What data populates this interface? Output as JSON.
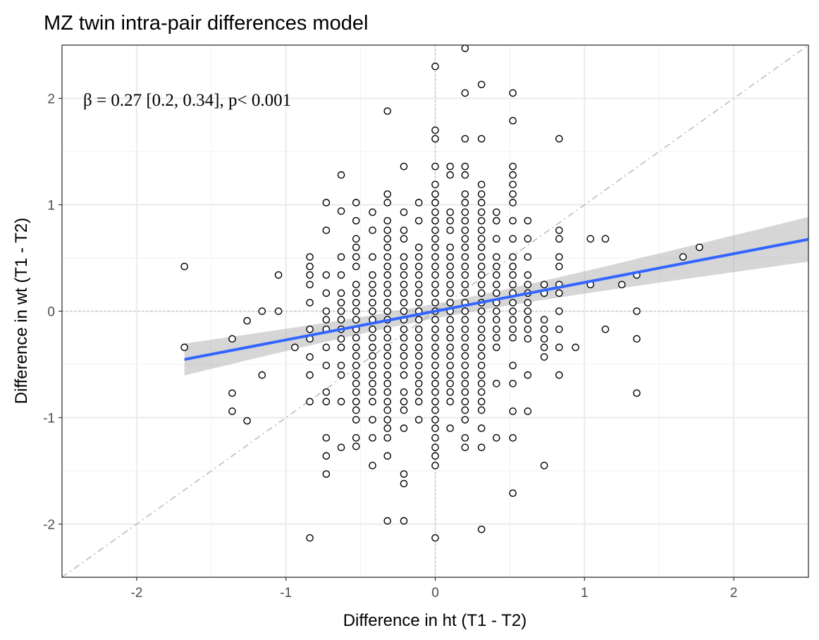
{
  "chart_data": {
    "type": "scatter",
    "title": "MZ twin intra-pair differences model",
    "xlabel": "Difference in  ht  (T1 - T2)",
    "ylabel": "Difference in  wt  (T1 - T2)",
    "xlim": [
      -2.5,
      2.5
    ],
    "ylim": [
      -2.5,
      2.5
    ],
    "xticks": [
      -2,
      -1,
      0,
      1,
      2
    ],
    "yticks": [
      -2,
      -1,
      0,
      1,
      2
    ],
    "grid": true,
    "annotation": "β = 0.27 [0.2, 0.34], p< 0.001",
    "reference_lines": {
      "identity": "y = x, dash-dot gray",
      "zero": "x = 0 and y = 0, dotted gray"
    },
    "fit": {
      "slope": 0.27,
      "ci": [
        0.2,
        0.34
      ],
      "intercept": 0.0,
      "x_range": [
        -1.68,
        2.5
      ],
      "color": "#3366FF",
      "band_color": "#999999"
    },
    "point_style": {
      "shape": "open circle",
      "stroke": "#000000",
      "fill": "#ffffff"
    },
    "columns": [
      {
        "x": -1.68,
        "y": [
          0.42,
          -0.34
        ]
      },
      {
        "x": -1.36,
        "y": [
          -0.26,
          -0.77,
          -0.94
        ]
      },
      {
        "x": -1.26,
        "y": [
          -0.09,
          -1.03
        ]
      },
      {
        "x": -1.16,
        "y": [
          0,
          -0.6
        ]
      },
      {
        "x": -1.05,
        "y": [
          0.34,
          0
        ]
      },
      {
        "x": -0.94,
        "y": [
          -0.34
        ]
      },
      {
        "x": -0.84,
        "y": [
          0.51,
          0.42,
          0.34,
          0.25,
          0.08,
          -0.17,
          -0.26,
          -0.43,
          -0.6,
          -0.85,
          -2.13
        ]
      },
      {
        "x": -0.73,
        "y": [
          1.02,
          0.76,
          0.34,
          0.17,
          0,
          -0.08,
          -0.17,
          -0.34,
          -0.51,
          -0.76,
          -0.85,
          -1.19,
          -1.36,
          -1.53
        ]
      },
      {
        "x": -0.63,
        "y": [
          1.28,
          0.94,
          0.51,
          0.34,
          0.17,
          0.08,
          0,
          -0.08,
          -0.17,
          -0.26,
          -0.34,
          -0.51,
          -0.6,
          -0.85,
          -1.28
        ]
      },
      {
        "x": -0.53,
        "y": [
          1.02,
          0.85,
          0.68,
          0.6,
          0.51,
          0.42,
          0.25,
          0.17,
          0.08,
          0,
          -0.08,
          -0.17,
          -0.25,
          -0.34,
          -0.42,
          -0.51,
          -0.6,
          -0.68,
          -0.76,
          -0.85,
          -0.93,
          -1.02,
          -1.19,
          -1.27
        ]
      },
      {
        "x": -0.42,
        "y": [
          0.93,
          0.76,
          0.51,
          0.34,
          0.25,
          0.17,
          0.08,
          0,
          -0.08,
          -0.17,
          -0.25,
          -0.34,
          -0.42,
          -0.51,
          -0.6,
          -0.68,
          -0.76,
          -0.85,
          -1.02,
          -1.19,
          -1.45
        ]
      },
      {
        "x": -0.32,
        "y": [
          1.88,
          1.1,
          1.02,
          0.85,
          0.76,
          0.68,
          0.6,
          0.51,
          0.42,
          0.34,
          0.25,
          0.17,
          0.08,
          0,
          -0.08,
          -0.17,
          -0.25,
          -0.34,
          -0.42,
          -0.51,
          -0.6,
          -0.68,
          -0.76,
          -0.85,
          -0.93,
          -1.02,
          -1.1,
          -1.19,
          -1.36,
          -1.97
        ]
      },
      {
        "x": -0.21,
        "y": [
          1.36,
          0.93,
          0.76,
          0.68,
          0.51,
          0.42,
          0.34,
          0.25,
          0.17,
          0.08,
          0,
          -0.08,
          -0.17,
          -0.25,
          -0.34,
          -0.42,
          -0.51,
          -0.6,
          -0.76,
          -0.85,
          -0.93,
          -1.1,
          -1.53,
          -1.62,
          -1.97
        ]
      },
      {
        "x": -0.11,
        "y": [
          1.02,
          0.85,
          0.6,
          0.51,
          0.42,
          0.34,
          0.25,
          0.17,
          0.08,
          0,
          -0.08,
          -0.17,
          -0.25,
          -0.34,
          -0.42,
          -0.51,
          -0.6,
          -0.68,
          -0.76,
          -0.85,
          -1.02
        ]
      },
      {
        "x": 0,
        "y": [
          2.3,
          1.7,
          1.62,
          1.36,
          1.19,
          1.1,
          1.02,
          0.93,
          0.85,
          0.76,
          0.68,
          0.6,
          0.51,
          0.42,
          0.34,
          0.25,
          0.17,
          0.08,
          0,
          -0.08,
          -0.17,
          -0.25,
          -0.34,
          -0.42,
          -0.51,
          -0.6,
          -0.68,
          -0.76,
          -0.85,
          -0.93,
          -1.02,
          -1.1,
          -1.19,
          -1.28,
          -1.36,
          -1.45,
          -2.13
        ]
      },
      {
        "x": 0.1,
        "y": [
          1.36,
          1.28,
          0.93,
          0.85,
          0.76,
          0.6,
          0.51,
          0.42,
          0.34,
          0.25,
          0.17,
          0.08,
          0,
          -0.08,
          -0.17,
          -0.25,
          -0.34,
          -0.42,
          -0.51,
          -0.6,
          -0.68,
          -0.76,
          -0.85,
          -1.1
        ]
      },
      {
        "x": 0.2,
        "y": [
          2.47,
          2.05,
          1.62,
          1.36,
          1.28,
          1.1,
          1.02,
          0.93,
          0.85,
          0.76,
          0.68,
          0.6,
          0.51,
          0.42,
          0.34,
          0.25,
          0.17,
          0.08,
          0,
          -0.08,
          -0.17,
          -0.25,
          -0.34,
          -0.42,
          -0.51,
          -0.6,
          -0.68,
          -0.76,
          -0.85,
          -0.93,
          -1.02,
          -1.19,
          -1.28
        ]
      },
      {
        "x": 0.31,
        "y": [
          2.13,
          1.62,
          1.19,
          1.1,
          1.02,
          0.93,
          0.85,
          0.76,
          0.68,
          0.6,
          0.51,
          0.42,
          0.34,
          0.25,
          0.17,
          0.08,
          0,
          -0.08,
          -0.17,
          -0.25,
          -0.34,
          -0.42,
          -0.51,
          -0.6,
          -0.68,
          -0.76,
          -0.85,
          -0.93,
          -1.1,
          -1.28,
          -2.05
        ]
      },
      {
        "x": 0.41,
        "y": [
          0.93,
          0.85,
          0.68,
          0.51,
          0.42,
          0.34,
          0.25,
          0.17,
          0.08,
          0,
          -0.08,
          -0.17,
          -0.25,
          -0.34,
          -0.68,
          -1.19
        ]
      },
      {
        "x": 0.52,
        "y": [
          2.05,
          1.79,
          1.36,
          1.28,
          1.19,
          1.1,
          1.02,
          0.85,
          0.68,
          0.51,
          0.42,
          0.34,
          0.25,
          0.17,
          0.08,
          0,
          -0.08,
          -0.17,
          -0.25,
          -0.51,
          -0.68,
          -0.94,
          -1.19,
          -1.71
        ]
      },
      {
        "x": 0.62,
        "y": [
          0.85,
          0.68,
          0.51,
          0.34,
          0.25,
          0.17,
          0.08,
          0,
          -0.08,
          -0.17,
          -0.26,
          -0.6,
          -0.94
        ]
      },
      {
        "x": 0.73,
        "y": [
          0.25,
          0.17,
          -0.08,
          -0.17,
          -0.26,
          -0.34,
          -0.43,
          -1.45
        ]
      },
      {
        "x": 0.83,
        "y": [
          1.62,
          0.76,
          0.68,
          0.51,
          0.42,
          0.25,
          0.17,
          0,
          -0.17,
          -0.34,
          -0.6
        ]
      },
      {
        "x": 0.94,
        "y": [
          -0.34
        ]
      },
      {
        "x": 1.04,
        "y": [
          0.68,
          0.25
        ]
      },
      {
        "x": 1.14,
        "y": [
          0.68,
          -0.17
        ]
      },
      {
        "x": 1.25,
        "y": [
          0.25
        ]
      },
      {
        "x": 1.35,
        "y": [
          0.34,
          0,
          -0.26,
          -0.77
        ]
      },
      {
        "x": 1.66,
        "y": [
          0.51
        ]
      },
      {
        "x": 1.77,
        "y": [
          0.6
        ]
      }
    ]
  }
}
